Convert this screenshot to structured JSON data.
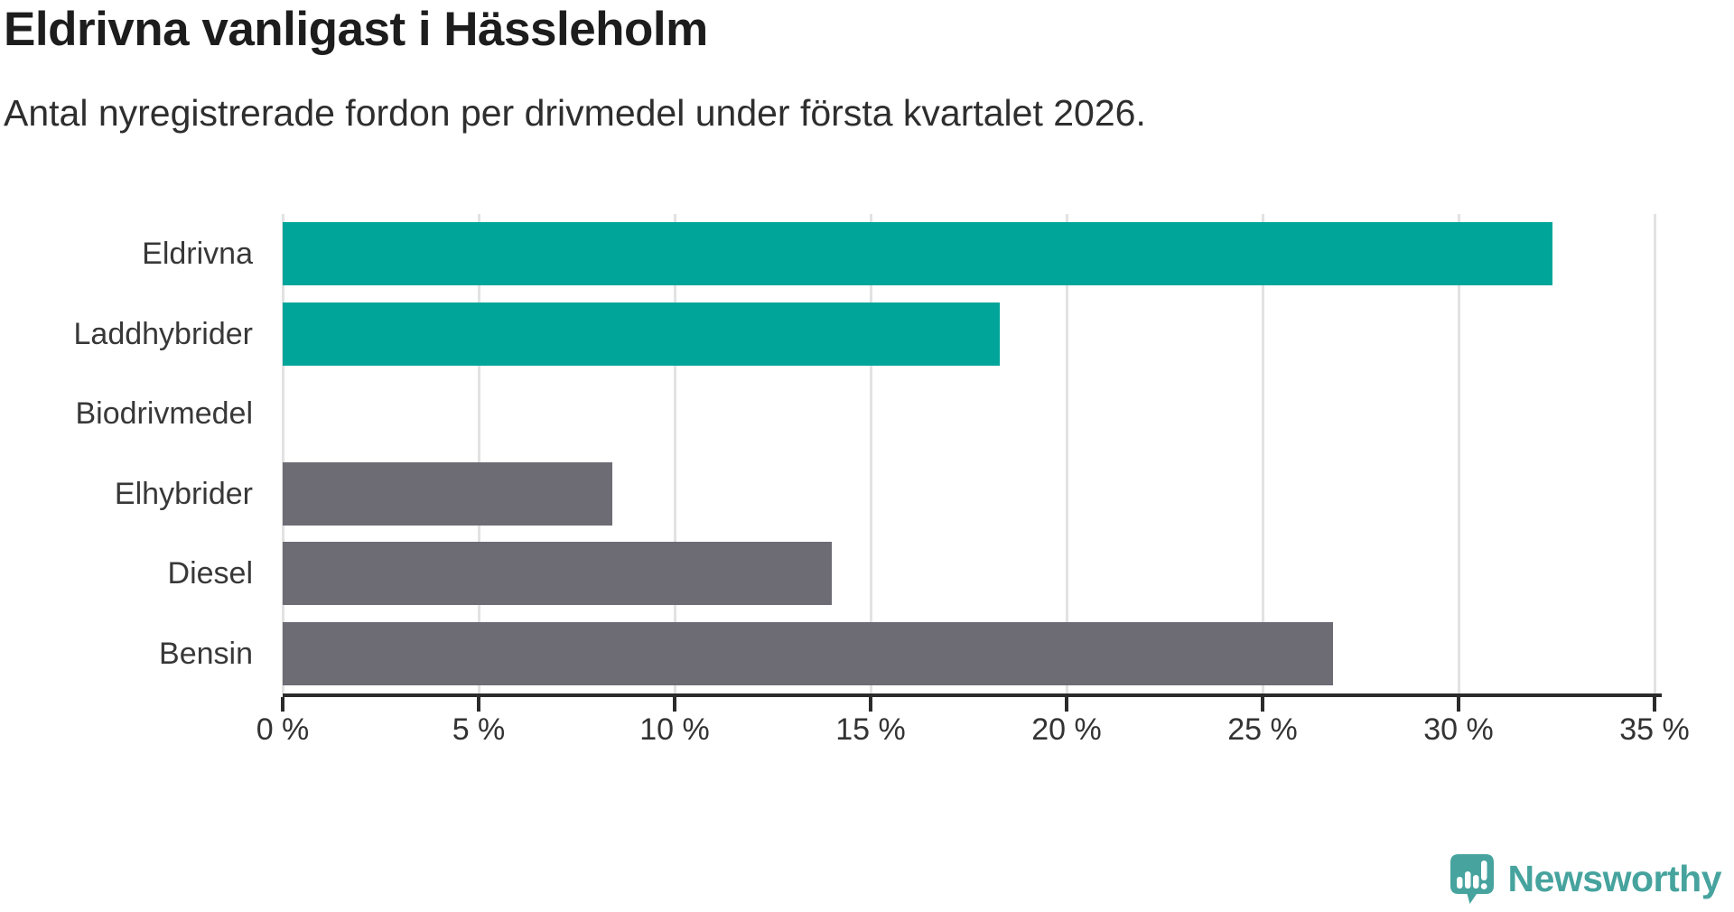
{
  "title": "Eldrivna vanligast i Hässleholm",
  "subtitle": "Antal nyregistrerade fordon per drivmedel under första kvartalet 2026.",
  "colors": {
    "highlight_bar": "#00a59a",
    "default_bar": "#6d6c75",
    "gridline": "#e2e2e2",
    "axis": "#2b2b2b",
    "brand_teal": "#46a39e"
  },
  "branding": {
    "name": "Newsworthy",
    "icon": "newsworthy-speech-bubble-chart-icon"
  },
  "chart_data": {
    "type": "bar",
    "orientation": "horizontal",
    "title": "Eldrivna vanligast i Hässleholm",
    "subtitle": "Antal nyregistrerade fordon per drivmedel under första kvartalet 2026.",
    "categories": [
      "Eldrivna",
      "Laddhybrider",
      "Biodrivmedel",
      "Elhybrider",
      "Diesel",
      "Bensin"
    ],
    "values": [
      32.4,
      18.3,
      0,
      8.4,
      14.0,
      26.8
    ],
    "unit": "%",
    "bar_colors": [
      "#00a59a",
      "#00a59a",
      "#6d6c75",
      "#6d6c75",
      "#6d6c75",
      "#6d6c75"
    ],
    "xlabel": "",
    "ylabel": "",
    "xlim": [
      0,
      35
    ],
    "x_ticks": [
      0,
      5,
      10,
      15,
      20,
      25,
      30,
      35
    ],
    "x_tick_labels": [
      "0 %",
      "5 %",
      "10 %",
      "15 %",
      "20 %",
      "25 %",
      "30 %",
      "35 %"
    ],
    "grid": "vertical-gridlines",
    "legend": "none"
  }
}
